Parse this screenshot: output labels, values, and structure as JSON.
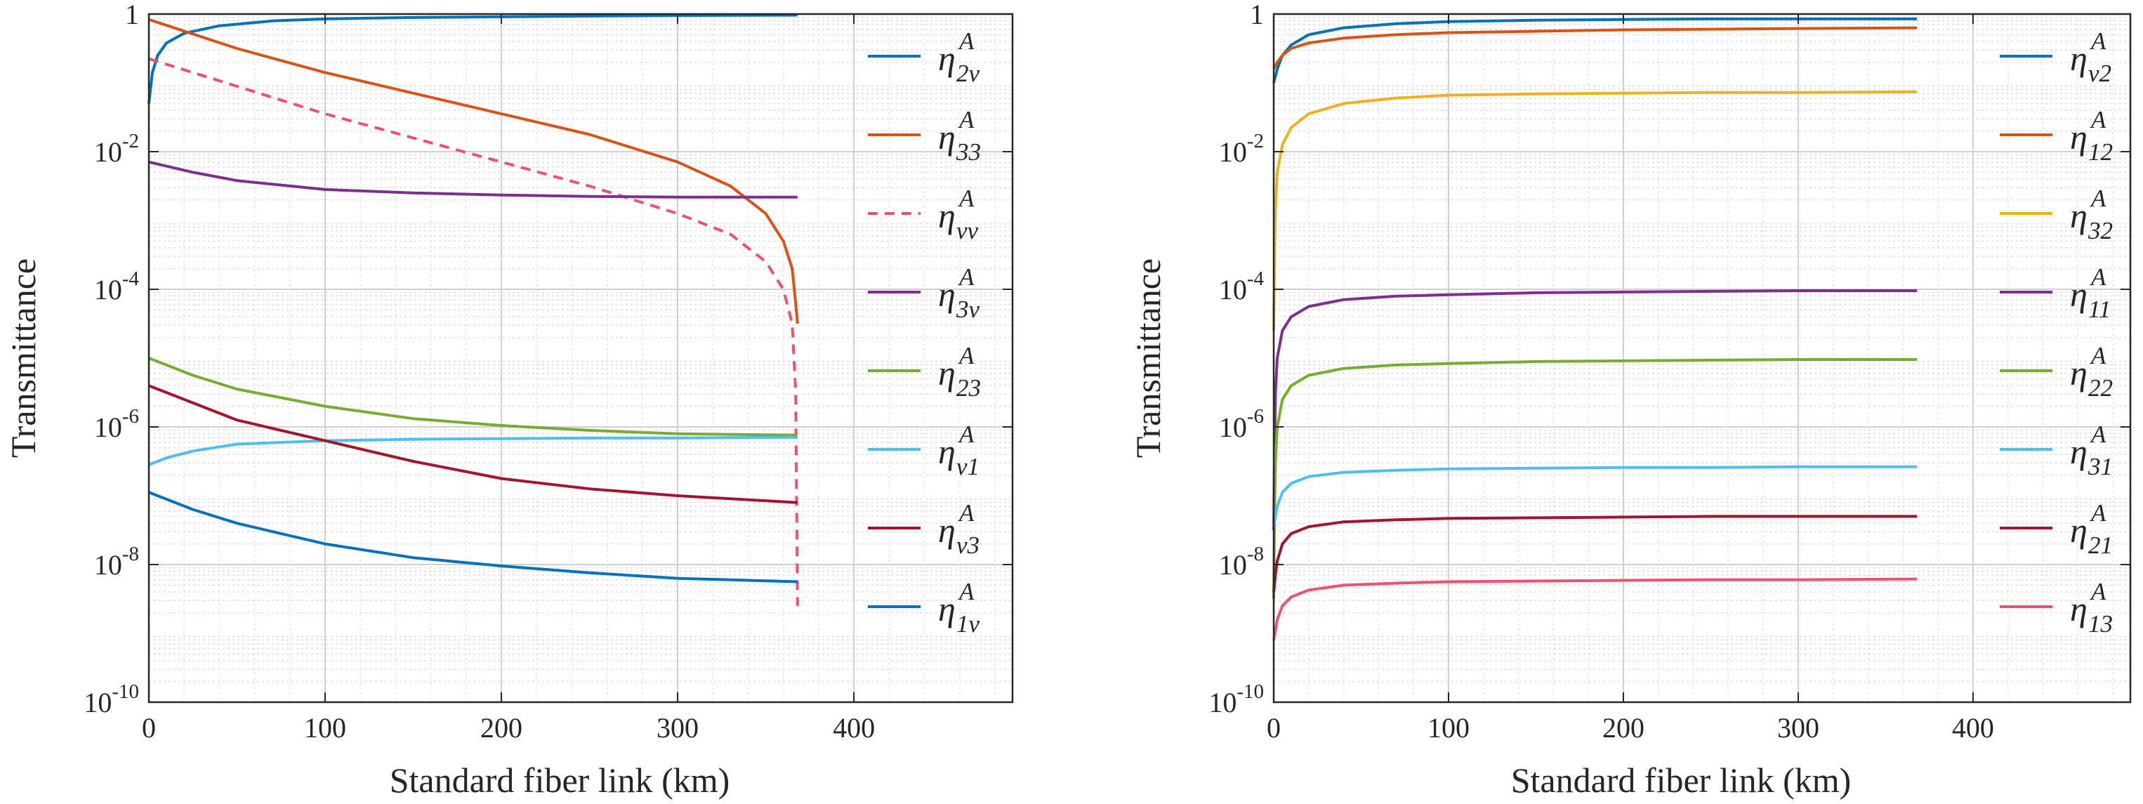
{
  "chart_data": [
    {
      "type": "line",
      "title": "",
      "xlabel": "Standard fiber link (km)",
      "ylabel": "Transmittance",
      "xlim": [
        0,
        490
      ],
      "ylim_log10": [
        -10,
        0
      ],
      "yscale": "log",
      "grid": "on (major and minor)",
      "legend": "right",
      "xticks": [
        0,
        100,
        200,
        300,
        400
      ],
      "xtick_labels": [
        "0",
        "100",
        "200",
        "300",
        "400"
      ],
      "yticks_log10": [
        -10,
        -8,
        -6,
        -4,
        -2,
        0
      ],
      "ytick_labels": [
        {
          "base": "10",
          "exp": "-10"
        },
        {
          "base": "10",
          "exp": "-8"
        },
        {
          "base": "10",
          "exp": "-6"
        },
        {
          "base": "10",
          "exp": "-4"
        },
        {
          "base": "10",
          "exp": "-2"
        },
        {
          "base": "1",
          "exp": ""
        }
      ],
      "series": [
        {
          "name": "η^A_2v",
          "sym": "η",
          "sup": "A",
          "sub": "2v",
          "color": "#0072BD",
          "dash": "solid",
          "x": [
            0,
            2,
            5,
            10,
            20,
            40,
            70,
            100,
            150,
            200,
            250,
            300,
            368
          ],
          "log10y": [
            -1.3,
            -0.85,
            -0.6,
            -0.42,
            -0.28,
            -0.17,
            -0.1,
            -0.07,
            -0.05,
            -0.04,
            -0.03,
            -0.02,
            -0.015
          ]
        },
        {
          "name": "η^A_33",
          "sym": "η",
          "sup": "A",
          "sub": "33",
          "color": "#D95319",
          "dash": "solid",
          "x": [
            0,
            50,
            100,
            150,
            200,
            250,
            300,
            330,
            350,
            360,
            365,
            367,
            368
          ],
          "log10y": [
            -0.08,
            -0.5,
            -0.85,
            -1.15,
            -1.45,
            -1.75,
            -2.15,
            -2.5,
            -2.9,
            -3.3,
            -3.7,
            -4.2,
            -4.5
          ]
        },
        {
          "name": "η^A_vv",
          "sym": "η",
          "sup": "A",
          "sub": "vv",
          "color": "#F0506E",
          "dash": "dashed",
          "x": [
            0,
            50,
            100,
            150,
            200,
            250,
            300,
            330,
            350,
            360,
            365,
            367,
            368
          ],
          "log10y": [
            -0.65,
            -1.05,
            -1.45,
            -1.8,
            -2.15,
            -2.5,
            -2.9,
            -3.2,
            -3.6,
            -4.0,
            -4.5,
            -5.5,
            -8.6
          ]
        },
        {
          "name": "η^A_3v",
          "sym": "η",
          "sup": "A",
          "sub": "3v",
          "color": "#7E2F8E",
          "dash": "solid",
          "x": [
            0,
            25,
            50,
            100,
            150,
            200,
            250,
            300,
            368
          ],
          "log10y": [
            -2.15,
            -2.3,
            -2.42,
            -2.55,
            -2.6,
            -2.63,
            -2.65,
            -2.66,
            -2.66
          ]
        },
        {
          "name": "η^A_23",
          "sym": "η",
          "sup": "A",
          "sub": "23",
          "color": "#77AC30",
          "dash": "solid",
          "x": [
            0,
            25,
            50,
            100,
            150,
            200,
            250,
            300,
            368
          ],
          "log10y": [
            -5.0,
            -5.25,
            -5.45,
            -5.7,
            -5.88,
            -5.98,
            -6.05,
            -6.1,
            -6.12
          ]
        },
        {
          "name": "η^A_v1",
          "sym": "η",
          "sup": "A",
          "sub": "v1",
          "color": "#4DBEEE",
          "dash": "solid",
          "x": [
            0,
            10,
            25,
            50,
            100,
            150,
            200,
            250,
            300,
            368
          ],
          "log10y": [
            -6.55,
            -6.45,
            -6.35,
            -6.25,
            -6.2,
            -6.18,
            -6.17,
            -6.16,
            -6.16,
            -6.15
          ]
        },
        {
          "name": "η^A_v3",
          "sym": "η",
          "sup": "A",
          "sub": "v3",
          "color": "#A2142F",
          "dash": "solid",
          "x": [
            0,
            25,
            50,
            100,
            150,
            200,
            250,
            300,
            368
          ],
          "log10y": [
            -5.4,
            -5.65,
            -5.9,
            -6.2,
            -6.5,
            -6.75,
            -6.9,
            -7.0,
            -7.1
          ]
        },
        {
          "name": "η^A_1v",
          "sym": "η",
          "sup": "A",
          "sub": "1v",
          "color": "#0072BD",
          "dash": "solid",
          "x": [
            0,
            25,
            50,
            100,
            150,
            200,
            250,
            300,
            368
          ],
          "log10y": [
            -6.95,
            -7.2,
            -7.4,
            -7.7,
            -7.9,
            -8.02,
            -8.12,
            -8.2,
            -8.25
          ]
        }
      ]
    },
    {
      "type": "line",
      "title": "",
      "xlabel": "Standard fiber link (km)",
      "ylabel": "Transmittance",
      "xlim": [
        0,
        490
      ],
      "ylim_log10": [
        -10,
        0
      ],
      "yscale": "log",
      "grid": "on (major and minor)",
      "legend": "right",
      "xticks": [
        0,
        100,
        200,
        300,
        400
      ],
      "xtick_labels": [
        "0",
        "100",
        "200",
        "300",
        "400"
      ],
      "yticks_log10": [
        -10,
        -8,
        -6,
        -4,
        -2,
        0
      ],
      "ytick_labels": [
        {
          "base": "10",
          "exp": "-10"
        },
        {
          "base": "10",
          "exp": "-8"
        },
        {
          "base": "10",
          "exp": "-6"
        },
        {
          "base": "10",
          "exp": "-4"
        },
        {
          "base": "10",
          "exp": "-2"
        },
        {
          "base": "1",
          "exp": ""
        }
      ],
      "series": [
        {
          "name": "η^A_v2",
          "sym": "η",
          "sup": "A",
          "sub": "v2",
          "color": "#0072BD",
          "dash": "solid",
          "x": [
            0,
            2,
            5,
            10,
            20,
            40,
            70,
            100,
            150,
            200,
            250,
            300,
            368
          ],
          "log10y": [
            -1.0,
            -0.8,
            -0.6,
            -0.45,
            -0.3,
            -0.2,
            -0.14,
            -0.11,
            -0.09,
            -0.08,
            -0.07,
            -0.07,
            -0.07
          ]
        },
        {
          "name": "η^A_12",
          "sym": "η",
          "sup": "A",
          "sub": "12",
          "color": "#D95319",
          "dash": "solid",
          "x": [
            0,
            2,
            5,
            10,
            20,
            40,
            70,
            100,
            150,
            200,
            250,
            300,
            368
          ],
          "log10y": [
            -0.8,
            -0.7,
            -0.6,
            -0.5,
            -0.42,
            -0.35,
            -0.3,
            -0.27,
            -0.25,
            -0.23,
            -0.22,
            -0.21,
            -0.2
          ]
        },
        {
          "name": "η^A_32",
          "sym": "η",
          "sup": "A",
          "sub": "32",
          "color": "#EDB120",
          "dash": "solid",
          "x": [
            0,
            0.5,
            1,
            2,
            5,
            10,
            20,
            40,
            70,
            100,
            150,
            200,
            250,
            300,
            368
          ],
          "log10y": [
            -4.6,
            -3.5,
            -2.8,
            -2.3,
            -1.9,
            -1.65,
            -1.45,
            -1.3,
            -1.22,
            -1.18,
            -1.16,
            -1.15,
            -1.14,
            -1.14,
            -1.13
          ]
        },
        {
          "name": "η^A_11",
          "sym": "η",
          "sup": "A",
          "sub": "11",
          "color": "#7E2F8E",
          "dash": "solid",
          "x": [
            0,
            0.5,
            1,
            2,
            5,
            10,
            20,
            40,
            70,
            100,
            150,
            200,
            250,
            300,
            368
          ],
          "log10y": [
            -7.5,
            -6.3,
            -5.5,
            -5.0,
            -4.6,
            -4.4,
            -4.25,
            -4.15,
            -4.1,
            -4.08,
            -4.05,
            -4.04,
            -4.03,
            -4.02,
            -4.02
          ]
        },
        {
          "name": "η^A_22",
          "sym": "η",
          "sup": "A",
          "sub": "22",
          "color": "#77AC30",
          "dash": "solid",
          "x": [
            0,
            0.5,
            1,
            2,
            5,
            10,
            20,
            40,
            70,
            100,
            150,
            200,
            250,
            300,
            368
          ],
          "log10y": [
            -8.5,
            -7.2,
            -6.5,
            -6.0,
            -5.6,
            -5.4,
            -5.25,
            -5.15,
            -5.1,
            -5.08,
            -5.05,
            -5.04,
            -5.03,
            -5.02,
            -5.02
          ]
        },
        {
          "name": "η^A_31",
          "sym": "η",
          "sup": "A",
          "sub": "31",
          "color": "#4DBEEE",
          "dash": "solid",
          "x": [
            0,
            1,
            2,
            5,
            10,
            20,
            40,
            70,
            100,
            150,
            200,
            250,
            300,
            368
          ],
          "log10y": [
            -7.45,
            -7.3,
            -7.15,
            -6.95,
            -6.82,
            -6.72,
            -6.66,
            -6.63,
            -6.61,
            -6.6,
            -6.59,
            -6.59,
            -6.58,
            -6.58
          ]
        },
        {
          "name": "η^A_21",
          "sym": "η",
          "sup": "A",
          "sub": "21",
          "color": "#A2142F",
          "dash": "solid",
          "x": [
            0,
            1,
            2,
            5,
            10,
            20,
            40,
            70,
            100,
            150,
            200,
            250,
            300,
            368
          ],
          "log10y": [
            -8.4,
            -8.15,
            -7.95,
            -7.7,
            -7.55,
            -7.45,
            -7.38,
            -7.35,
            -7.33,
            -7.32,
            -7.31,
            -7.3,
            -7.3,
            -7.3
          ]
        },
        {
          "name": "η^A_13",
          "sym": "η",
          "sup": "A",
          "sub": "13",
          "color": "#F0506E",
          "dash": "solid",
          "x": [
            0,
            1,
            2,
            5,
            10,
            20,
            40,
            70,
            100,
            150,
            200,
            250,
            300,
            368
          ],
          "log10y": [
            -9.1,
            -8.95,
            -8.8,
            -8.6,
            -8.47,
            -8.37,
            -8.3,
            -8.27,
            -8.25,
            -8.24,
            -8.23,
            -8.22,
            -8.22,
            -8.21
          ]
        }
      ]
    }
  ]
}
